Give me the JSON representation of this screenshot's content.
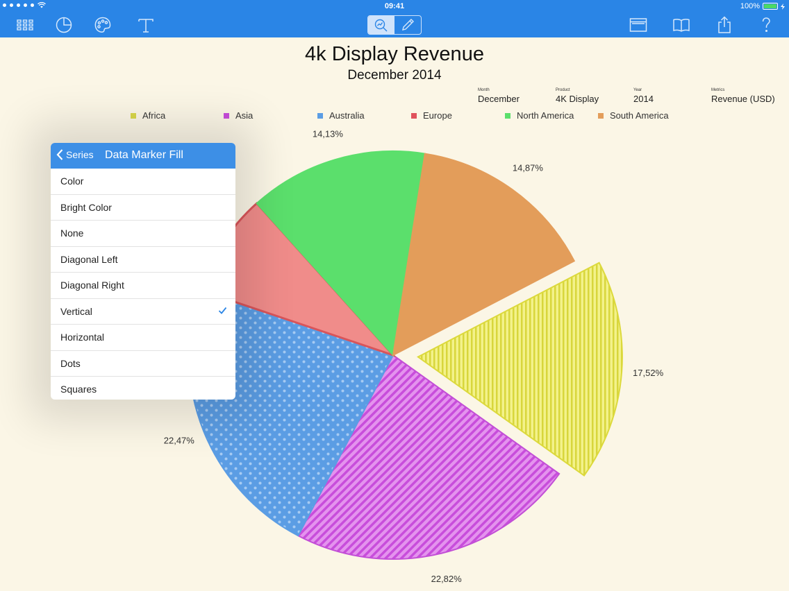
{
  "status_bar": {
    "time": "09:41",
    "battery": "100%",
    "signal_icon": "signal-dots-icon",
    "wifi_icon": "wifi-icon"
  },
  "toolbar": {
    "left_icons": [
      "grid-icon",
      "pie-chart-icon",
      "palette-icon",
      "text-icon"
    ],
    "segment_icons": [
      "chart-magnify-icon",
      "pencil-icon"
    ],
    "right_icons": [
      "window-icon",
      "book-icon",
      "share-icon",
      "help-icon"
    ]
  },
  "chart_meta": [
    {
      "label": "Month",
      "value": "December"
    },
    {
      "label": "Product",
      "value": "4K Display"
    },
    {
      "label": "Year",
      "value": "2014"
    },
    {
      "label": "Metrics",
      "value": "Revenue (USD)"
    }
  ],
  "popover": {
    "back_label": "Series",
    "title": "Data Marker Fill",
    "options": [
      "Color",
      "Bright Color",
      "None",
      "Diagonal Left",
      "Diagonal Right",
      "Vertical",
      "Horizontal",
      "Dots",
      "Squares"
    ],
    "selected": "Vertical"
  },
  "chart_data": {
    "type": "pie",
    "title": "4k Display Revenue",
    "subtitle": "December 2014",
    "legend_position": "top",
    "series": [
      {
        "name": "Africa",
        "value": 17.52,
        "label": "17,52%",
        "color": "#e3e04f",
        "fill": "vertical",
        "exploded": true
      },
      {
        "name": "Asia",
        "value": 22.82,
        "label": "22,82%",
        "color": "#cf58e0",
        "fill": "diagonal"
      },
      {
        "name": "Australia",
        "value": 22.47,
        "label": "22,47%",
        "color": "#5b9de4",
        "fill": "dots"
      },
      {
        "name": "Europe",
        "value": 8.19,
        "label": "",
        "color": "#f08c8a",
        "fill": "color"
      },
      {
        "name": "North America",
        "value": 14.13,
        "label": "14,13%",
        "color": "#5bdf6c",
        "fill": "color"
      },
      {
        "name": "South America",
        "value": 14.87,
        "label": "14,87%",
        "color": "#e39d5a",
        "fill": "color"
      }
    ]
  }
}
